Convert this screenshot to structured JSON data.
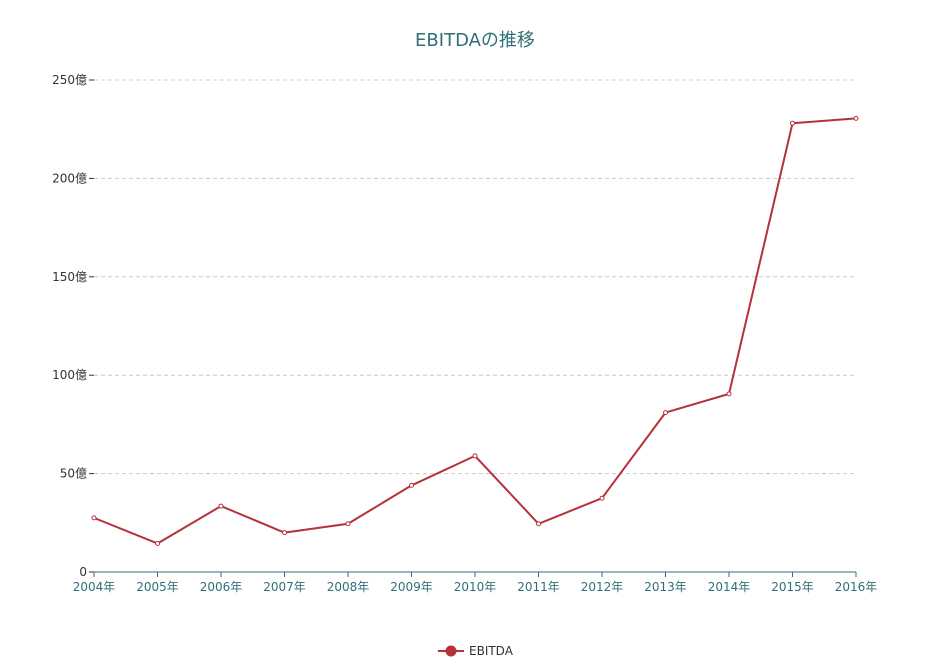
{
  "chart_data": {
    "type": "line",
    "title": "EBITDAの推移",
    "categories": [
      "2004年",
      "2005年",
      "2006年",
      "2007年",
      "2008年",
      "2009年",
      "2010年",
      "2011年",
      "2012年",
      "2013年",
      "2014年",
      "2015年",
      "2016年"
    ],
    "y_ticks": [
      0,
      50,
      100,
      150,
      200,
      250
    ],
    "y_tick_labels": [
      "0",
      "50億",
      "100億",
      "150億",
      "200億",
      "250億"
    ],
    "ylim": [
      0,
      250
    ],
    "unit_note": "values in 億",
    "grid": true,
    "legend_position": "bottom-center",
    "series": [
      {
        "name": "EBITDA",
        "color": "#b5323a",
        "values": [
          27.5,
          14.5,
          33.5,
          20,
          24.5,
          44,
          59,
          24.5,
          37.5,
          81,
          90.5,
          228,
          230.5
        ]
      }
    ]
  }
}
